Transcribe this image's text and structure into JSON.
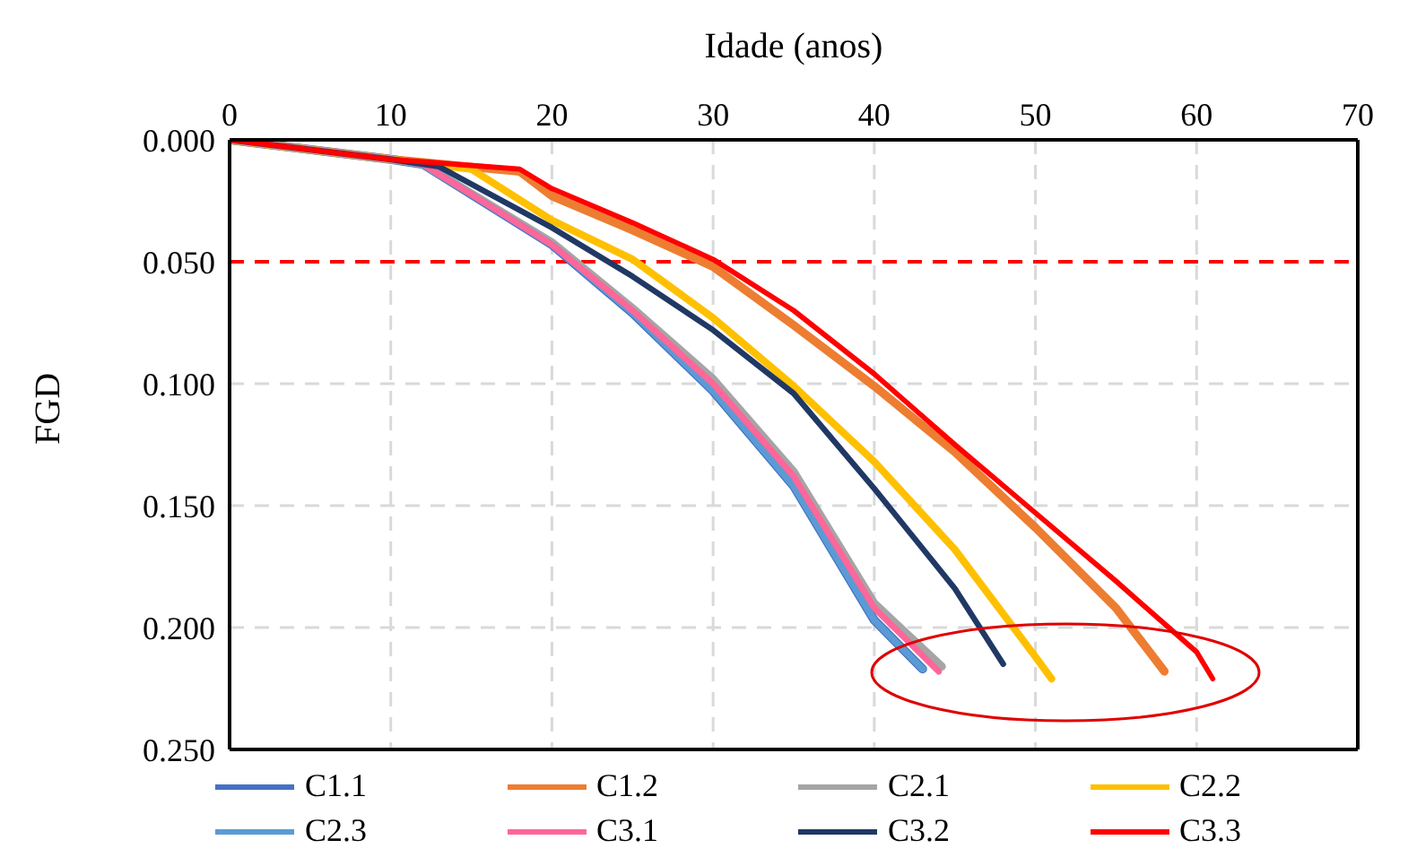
{
  "chart_data": {
    "type": "line",
    "xlabel": "Idade (anos)",
    "ylabel": "FGD",
    "xlim": [
      0,
      70
    ],
    "xticks": [
      0,
      10,
      20,
      30,
      40,
      50,
      60,
      70
    ],
    "ylim": [
      0.25,
      0
    ],
    "yticks": [
      {
        "value": 0,
        "label": "0.000"
      },
      {
        "value": 0.05,
        "label": "0.050"
      },
      {
        "value": 0.1,
        "label": "0.100"
      },
      {
        "value": 0.15,
        "label": "0.150"
      },
      {
        "value": 0.2,
        "label": "0.200"
      },
      {
        "value": 0.25,
        "label": "0.250"
      }
    ],
    "grid": true,
    "legend": "bottom",
    "marker": "none",
    "line_style": "solid",
    "ref_lines": [
      {
        "axis": "y",
        "value": 0.05,
        "color": "#ff0000",
        "line_style": "dashed"
      }
    ],
    "series": [
      {
        "name": "C1.1",
        "color": "#4472c4",
        "x": [
          0,
          10,
          12,
          20,
          25,
          30,
          35,
          40,
          43
        ],
        "values": [
          0,
          0.008,
          0.01,
          0.043,
          0.071,
          0.103,
          0.142,
          0.197,
          0.217
        ]
      },
      {
        "name": "C1.2",
        "color": "#ed7d31",
        "x": [
          0,
          10,
          18,
          20,
          25,
          30,
          35,
          40,
          45,
          50,
          55,
          58
        ],
        "values": [
          0,
          0.008,
          0.013,
          0.023,
          0.037,
          0.052,
          0.076,
          0.101,
          0.128,
          0.159,
          0.192,
          0.218
        ]
      },
      {
        "name": "C2.1",
        "color": "#a5a5a5",
        "x": [
          0,
          10,
          12,
          20,
          25,
          30,
          35,
          40,
          44.2
        ],
        "values": [
          0,
          0.008,
          0.01,
          0.042,
          0.069,
          0.098,
          0.136,
          0.19,
          0.216
        ]
      },
      {
        "name": "C2.2",
        "color": "#ffc000",
        "x": [
          0,
          10,
          15,
          20,
          25,
          30,
          35,
          40,
          45,
          50,
          51
        ],
        "values": [
          0,
          0.008,
          0.012,
          0.033,
          0.049,
          0.073,
          0.101,
          0.132,
          0.168,
          0.212,
          0.221
        ]
      },
      {
        "name": "C2.3",
        "color": "#5b9bd5",
        "x": [
          0,
          10,
          12,
          20,
          25,
          30,
          35,
          40,
          43
        ],
        "values": [
          0,
          0.008,
          0.01,
          0.043,
          0.071,
          0.103,
          0.142,
          0.197,
          0.217
        ]
      },
      {
        "name": "C3.1",
        "color": "#ff6699",
        "x": [
          0,
          10,
          12,
          20,
          25,
          30,
          35,
          40,
          44
        ],
        "values": [
          0,
          0.008,
          0.01,
          0.043,
          0.07,
          0.1,
          0.138,
          0.192,
          0.218
        ]
      },
      {
        "name": "C3.2",
        "color": "#203864",
        "x": [
          0,
          10,
          13,
          20,
          25,
          30,
          35,
          40,
          45,
          48
        ],
        "values": [
          0,
          0.008,
          0.011,
          0.036,
          0.056,
          0.078,
          0.104,
          0.143,
          0.184,
          0.215
        ]
      },
      {
        "name": "C3.3",
        "color": "#ff0000",
        "x": [
          0,
          10,
          18,
          20,
          25,
          30,
          35,
          40,
          45,
          50,
          55,
          60,
          61
        ],
        "values": [
          0,
          0.008,
          0.012,
          0.02,
          0.034,
          0.049,
          0.07,
          0.096,
          0.125,
          0.153,
          0.181,
          0.21,
          0.221
        ]
      }
    ]
  }
}
